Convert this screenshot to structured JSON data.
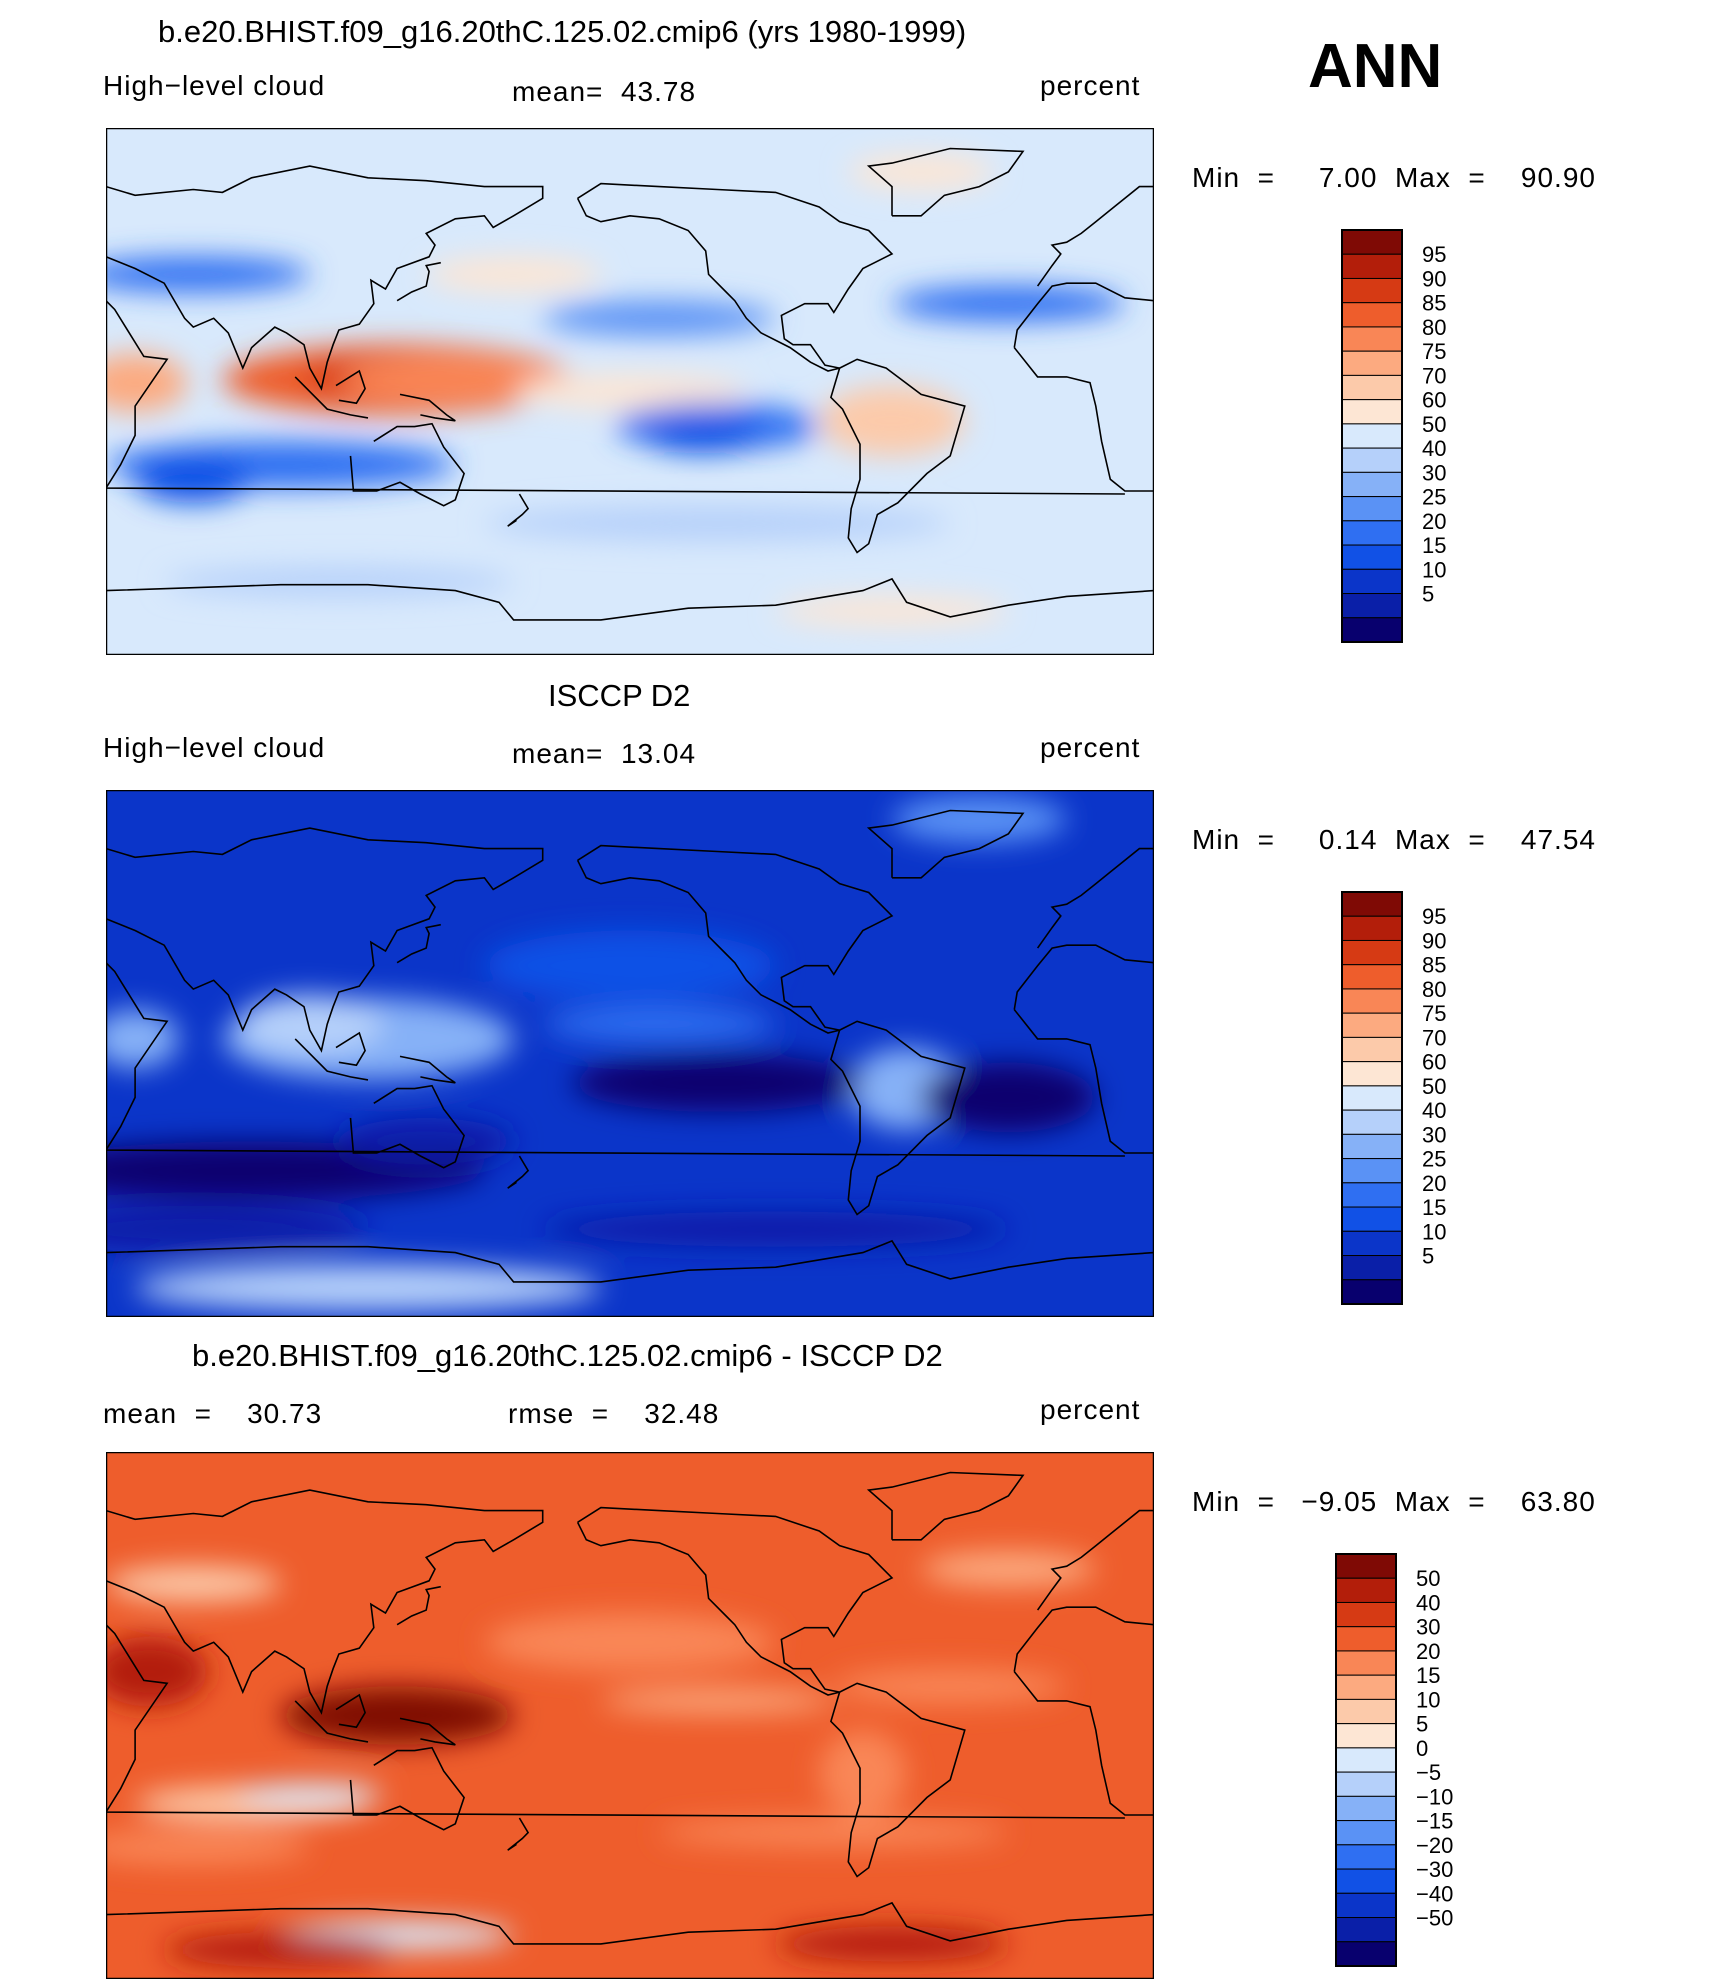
{
  "season": "ANN",
  "colors": {
    "scale_abs": [
      "#08006e",
      "#0a1fa8",
      "#0b35c9",
      "#1151e6",
      "#2f6ff2",
      "#5a92f5",
      "#86b1f7",
      "#b5d0fa",
      "#d8e9fc",
      "#fde6d4",
      "#fccaaa",
      "#fcaa80",
      "#f98656",
      "#ee5d2c",
      "#d63a14",
      "#b31e0a",
      "#7f0a05"
    ],
    "scale_diff": [
      "#08006e",
      "#0a1fa8",
      "#0b35c9",
      "#1151e6",
      "#2f6ff2",
      "#5a92f5",
      "#86b1f7",
      "#b5d0fa",
      "#d8e9fc",
      "#fde6d4",
      "#fccaaa",
      "#fcaa80",
      "#f98656",
      "#ee5d2c",
      "#d63a14",
      "#b31e0a",
      "#7f0a05"
    ],
    "land_outline": "#000000"
  },
  "panels": [
    {
      "title": "b.e20.BHIST.f09_g16.20thC.125.02.cmip6 (yrs 1980-1999)",
      "left_label": "High−level cloud",
      "center_label": "mean=  43.78",
      "right_label": "percent",
      "minmax": "Min  =     7.00  Max  =    90.90",
      "colorbar_levels": [
        "95",
        "90",
        "85",
        "80",
        "75",
        "70",
        "60",
        "50",
        "40",
        "30",
        "25",
        "20",
        "15",
        "10",
        "5"
      ],
      "scale": "scale_abs"
    },
    {
      "title": "ISCCP D2",
      "left_label": "High−level cloud",
      "center_label": "mean=  13.04",
      "right_label": "percent",
      "minmax": "Min  =     0.14  Max  =    47.54",
      "colorbar_levels": [
        "95",
        "90",
        "85",
        "80",
        "75",
        "70",
        "60",
        "50",
        "40",
        "30",
        "25",
        "20",
        "15",
        "10",
        "5"
      ],
      "scale": "scale_abs"
    },
    {
      "title": "b.e20.BHIST.f09_g16.20thC.125.02.cmip6 - ISCCP D2",
      "left_label": "mean  =    30.73",
      "center_label": "rmse  =    32.48",
      "right_label": "percent",
      "minmax": "Min  =   −9.05  Max  =    63.80",
      "colorbar_levels": [
        "50",
        "40",
        "30",
        "20",
        "15",
        "10",
        "5",
        "0",
        "−5",
        "−10",
        "−15",
        "−20",
        "−30",
        "−40",
        "−50"
      ],
      "scale": "scale_diff"
    }
  ],
  "chart_data": [
    {
      "type": "heatmap",
      "title": "b.e20.BHIST.f09_g16.20thC.125.02.cmip6 (yrs 1980-1999)",
      "variable": "High−level cloud",
      "units": "percent",
      "mean": 43.78,
      "min": 7.0,
      "max": 90.9,
      "contour_levels": [
        5,
        10,
        15,
        20,
        25,
        30,
        40,
        50,
        60,
        70,
        75,
        80,
        85,
        90,
        95
      ],
      "projection": "cylindrical equidistant, Pacific-centered"
    },
    {
      "type": "heatmap",
      "title": "ISCCP D2",
      "variable": "High−level cloud",
      "units": "percent",
      "mean": 13.04,
      "min": 0.14,
      "max": 47.54,
      "contour_levels": [
        5,
        10,
        15,
        20,
        25,
        30,
        40,
        50,
        60,
        70,
        75,
        80,
        85,
        90,
        95
      ],
      "projection": "cylindrical equidistant, Pacific-centered"
    },
    {
      "type": "heatmap",
      "title": "b.e20.BHIST.f09_g16.20thC.125.02.cmip6 - ISCCP D2",
      "units": "percent",
      "mean": 30.73,
      "rmse": 32.48,
      "min": -9.05,
      "max": 63.8,
      "contour_levels": [
        -50,
        -40,
        -30,
        -20,
        -15,
        -10,
        -5,
        0,
        5,
        10,
        15,
        20,
        30,
        40,
        50
      ],
      "projection": "cylindrical equidistant, Pacific-centered"
    }
  ]
}
